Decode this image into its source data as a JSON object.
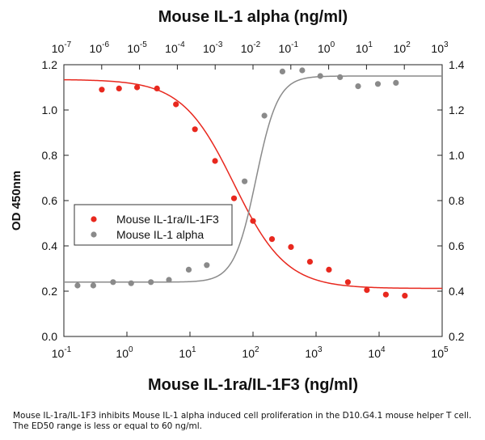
{
  "chart_data": {
    "type": "scatter",
    "top_title": "Mouse IL-1 alpha (ng/ml)",
    "xlabel": "Mouse IL-1ra/IL-1F3 (ng/ml)",
    "ylabel": "OD 450nm",
    "x_bottom": {
      "scale": "log",
      "range": [
        0.1,
        100000
      ],
      "ticks": [
        {
          "base": "10",
          "exp": "-1"
        },
        {
          "base": "10",
          "exp": "0"
        },
        {
          "base": "10",
          "exp": "1"
        },
        {
          "base": "10",
          "exp": "2"
        },
        {
          "base": "10",
          "exp": "3"
        },
        {
          "base": "10",
          "exp": "4"
        },
        {
          "base": "10",
          "exp": "5"
        }
      ]
    },
    "x_top": {
      "scale": "log",
      "range": [
        1e-07,
        1000
      ],
      "ticks": [
        {
          "base": "10",
          "exp": "-7"
        },
        {
          "base": "10",
          "exp": "-6"
        },
        {
          "base": "10",
          "exp": "-5"
        },
        {
          "base": "10",
          "exp": "-4"
        },
        {
          "base": "10",
          "exp": "-3"
        },
        {
          "base": "10",
          "exp": "-2"
        },
        {
          "base": "10",
          "exp": "-1"
        },
        {
          "base": "10",
          "exp": "0"
        },
        {
          "base": "10",
          "exp": "1"
        },
        {
          "base": "10",
          "exp": "2"
        },
        {
          "base": "10",
          "exp": "3"
        }
      ]
    },
    "y_left": {
      "range": [
        0.0,
        1.2
      ],
      "ticks": [
        "0.0",
        "0.2",
        "0.4",
        "0.6",
        "0.8",
        "1.0",
        "1.2"
      ]
    },
    "y_right": {
      "range": [
        0.2,
        1.4
      ],
      "ticks": [
        "0.2",
        "0.4",
        "0.6",
        "0.8",
        "1.0",
        "1.2",
        "1.4"
      ]
    },
    "grid": false,
    "legend": "center-left",
    "series": [
      {
        "name": "Mouse IL-1ra/IL-1F3",
        "color": "#e8281e",
        "x_axis": "bottom",
        "y_axis": "left",
        "x": [
          0.4,
          0.75,
          1.45,
          3.0,
          6.0,
          12,
          25,
          50,
          100,
          200,
          400,
          800,
          1600,
          3200,
          6400,
          12800,
          25600
        ],
        "y": [
          1.09,
          1.095,
          1.1,
          1.095,
          1.025,
          0.915,
          0.775,
          0.61,
          0.51,
          0.43,
          0.395,
          0.33,
          0.295,
          0.24,
          0.205,
          0.185,
          0.18
        ],
        "fit": {
          "model": "4PL-decreasing",
          "top": 1.135,
          "bottom": 0.212,
          "ec50": 50,
          "hill": 1.05
        }
      },
      {
        "name": "Mouse IL-1 alpha",
        "color": "#8a8a8a",
        "x_axis": "top",
        "y_axis": "right",
        "x": [
          2.3e-07,
          6e-07,
          2e-06,
          6e-06,
          2e-05,
          6e-05,
          0.0002,
          0.0006,
          0.002,
          0.006,
          0.02,
          0.06,
          0.2,
          0.6,
          2,
          6,
          20,
          60
        ],
        "y": [
          0.425,
          0.425,
          0.44,
          0.435,
          0.44,
          0.45,
          0.495,
          0.515,
          0.635,
          0.885,
          1.175,
          1.37,
          1.375,
          1.35,
          1.345,
          1.305,
          1.315,
          1.32
        ],
        "fit": {
          "model": "4PL-increasing",
          "bottom": 0.44,
          "top": 1.35,
          "ec50": 0.012,
          "hill": 1.5
        }
      }
    ]
  },
  "caption": "Mouse IL-1ra/IL-1F3 inhibits Mouse IL-1 alpha induced cell proliferation in the D10.G4.1 mouse helper T cell. The ED50 range is less or equal to 60 ng/ml."
}
